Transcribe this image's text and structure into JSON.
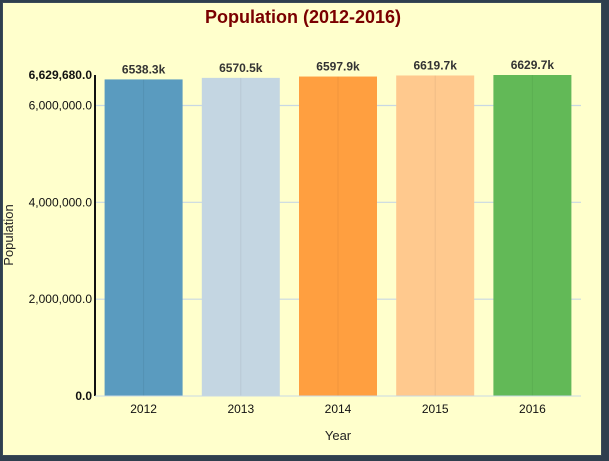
{
  "chart_data": {
    "type": "bar",
    "title": "Population (2012-2016)",
    "xlabel": "Year",
    "ylabel": "Population",
    "categories": [
      "2012",
      "2013",
      "2014",
      "2015",
      "2016"
    ],
    "values": [
      6538300,
      6570500,
      6597900,
      6619700,
      6629680
    ],
    "data_labels": [
      "6538.3k",
      "6570.5k",
      "6597.9k",
      "6619.7k",
      "6629.7k"
    ],
    "colors": [
      "#5a9bbf",
      "#c4d6e2",
      "#ff9f40",
      "#ffc98e",
      "#62b957"
    ],
    "ylim": [
      0,
      6629680
    ],
    "yticks": [
      0,
      2000000,
      4000000,
      6000000,
      6629680
    ],
    "ytick_labels": [
      "0.0",
      "2,000,000.0",
      "4,000,000.0",
      "6,000,000.0",
      "6,629,680.0"
    ],
    "grid": true
  }
}
